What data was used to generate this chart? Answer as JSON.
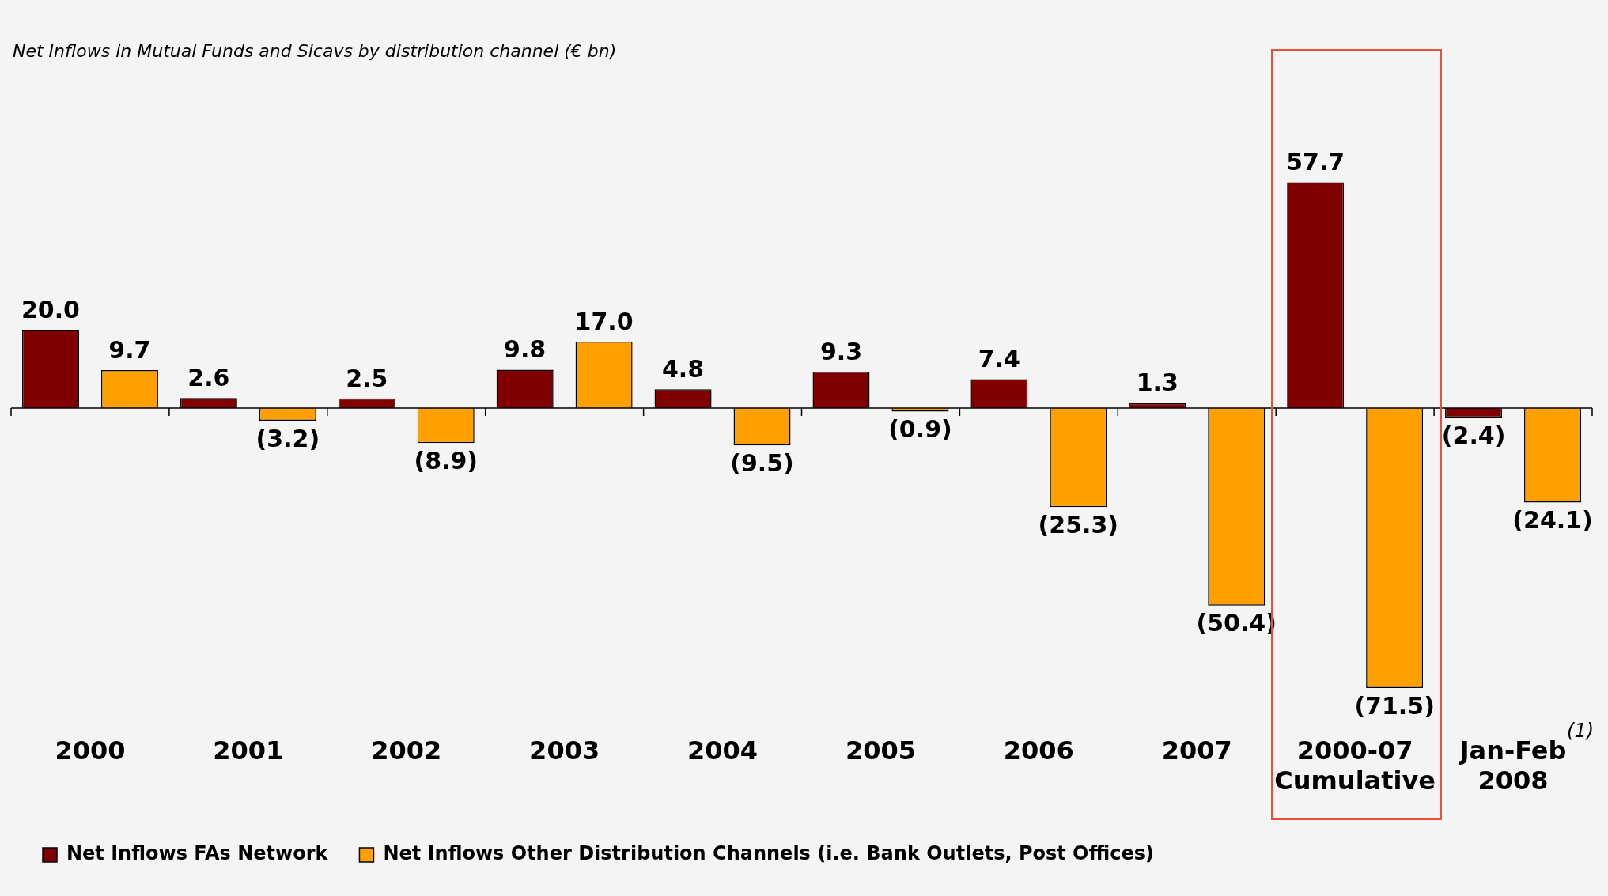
{
  "chart_data": {
    "type": "bar",
    "title": "Net Inflows in Mutual Funds and Sicavs by distribution channel (€ bn)",
    "categories": [
      "2000",
      "2001",
      "2002",
      "2003",
      "2004",
      "2005",
      "2006",
      "2007",
      "2000-07\nCumulative",
      "Jan-Feb\n2008"
    ],
    "series": [
      {
        "name": "Net Inflows FAs Network",
        "color": "#800000",
        "values": [
          20.0,
          2.6,
          2.5,
          9.8,
          4.8,
          9.3,
          7.4,
          1.3,
          57.7,
          -2.4
        ],
        "value_labels": [
          "20.0",
          "2.6",
          "2.5",
          "9.8",
          "4.8",
          "9.3",
          "7.4",
          "1.3",
          "57.7",
          "(2.4)"
        ]
      },
      {
        "name": "Net Inflows Other Distribution Channels (i.e. Bank Outlets, Post Offices)",
        "color": "#ffa000",
        "values": [
          9.7,
          -3.2,
          -8.9,
          17.0,
          -9.5,
          -0.9,
          -25.3,
          -50.4,
          -71.5,
          -24.1
        ],
        "value_labels": [
          "9.7",
          "(3.2)",
          "(8.9)",
          "17.0",
          "(9.5)",
          "(0.9)",
          "(25.3)",
          "(50.4)",
          "(71.5)",
          "(24.1)"
        ]
      }
    ],
    "annotations": [
      "(1)"
    ],
    "grid": false,
    "legend": "bottom"
  }
}
